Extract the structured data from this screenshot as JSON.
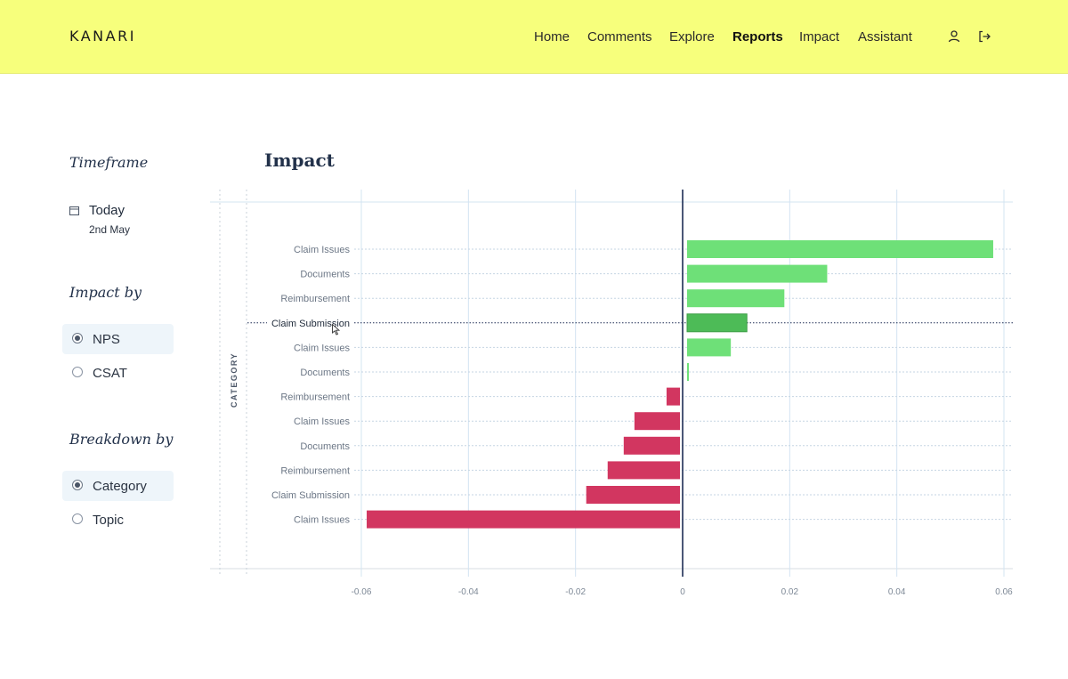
{
  "app": {
    "logo": "KANARI"
  },
  "nav": {
    "items": [
      {
        "label": "Home"
      },
      {
        "label": "Comments"
      },
      {
        "label": "Explore"
      },
      {
        "label": "Reports",
        "active": true
      },
      {
        "label": "Impact"
      },
      {
        "label": "Assistant"
      }
    ],
    "icons": [
      "user-icon",
      "logout-icon"
    ]
  },
  "sidebar": {
    "timeframe": {
      "heading": "Timeframe",
      "icon": "calendar-icon",
      "value": "Today",
      "sub": "2nd May"
    },
    "impact_by": {
      "heading": "Impact by",
      "options": [
        {
          "label": "NPS",
          "selected": true
        },
        {
          "label": "CSAT",
          "selected": false
        }
      ]
    },
    "breakdown_by": {
      "heading": "Breakdown by",
      "options": [
        {
          "label": "Category",
          "selected": true
        },
        {
          "label": "Topic",
          "selected": false
        }
      ]
    }
  },
  "colors": {
    "header_bg": "#f7ff7c",
    "positive": "#6ee078",
    "positive_highlight": "#4dbb57",
    "negative": "#d23660",
    "zero_line": "#1e2d55",
    "grid": "#d3e4f2"
  },
  "chart_data": {
    "type": "bar",
    "orientation": "horizontal",
    "title": "Impact",
    "ylabel": "CATEGORY",
    "xlabel": "",
    "xlim": [
      -0.06,
      0.06
    ],
    "xticks": [
      "-0.06",
      "-0.04",
      "-0.02",
      "0",
      "0.02",
      "0.04",
      "0.06"
    ],
    "highlighted_index": 3,
    "categories": [
      "Claim Issues",
      "Documents",
      "Reimbursement",
      "Claim Submission",
      "Claim Issues",
      "Documents",
      "Reimbursement",
      "Claim Issues",
      "Documents",
      "Reimbursement",
      "Claim Submission",
      "Claim Issues"
    ],
    "values": [
      0.058,
      0.027,
      0.019,
      0.012,
      0.009,
      0.001,
      -0.003,
      -0.009,
      -0.011,
      -0.014,
      -0.018,
      -0.059
    ]
  }
}
